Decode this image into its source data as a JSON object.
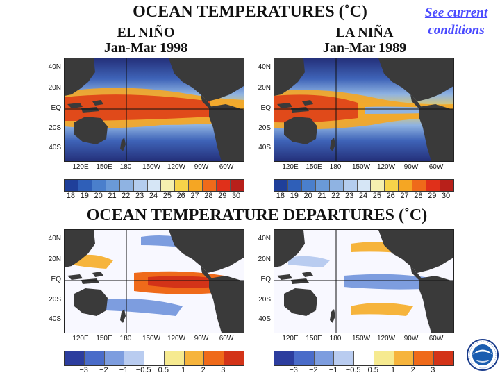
{
  "header": {
    "title": "OCEAN TEMPERATURES (˚C)",
    "link_line1": "See current",
    "link_line2": "conditions"
  },
  "panels": {
    "el_nino": {
      "name": "EL NIÑO",
      "period": "Jan-Mar 1998"
    },
    "la_nina": {
      "name": "LA NIÑA",
      "period": "Jan-Mar 1989"
    }
  },
  "departures_title": "OCEAN TEMPERATURE DEPARTURES (˚C)",
  "axes": {
    "lat_labels": [
      "40N",
      "20N",
      "EQ",
      "20S",
      "40S"
    ],
    "lon_labels": [
      "120E",
      "150E",
      "180",
      "150W",
      "120W",
      "90W",
      "60W"
    ]
  },
  "colorbars": {
    "temperature": {
      "labels": [
        "18",
        "19",
        "20",
        "21",
        "22",
        "23",
        "24",
        "25",
        "26",
        "27",
        "28",
        "29",
        "30"
      ],
      "colors": [
        "#1f3f9a",
        "#2f5fb8",
        "#4a7fcc",
        "#6a9ad8",
        "#8fb3e2",
        "#b4cdee",
        "#d6e6f6",
        "#f5f0b0",
        "#f7d44a",
        "#f5a623",
        "#ef6a1a",
        "#e0301a",
        "#b8201a"
      ]
    },
    "departure": {
      "labels": [
        "−3",
        "−2",
        "−1",
        "−0.5",
        "0.5",
        "1",
        "2",
        "3"
      ],
      "colors": [
        "#2c3d9e",
        "#4a6cc9",
        "#7d9ddf",
        "#b9ccf0",
        "#ffffff",
        "#f6ea90",
        "#f6b43c",
        "#ef6a1a",
        "#d33318"
      ]
    }
  },
  "logo": {
    "icon": "noaa-logo-icon"
  }
}
